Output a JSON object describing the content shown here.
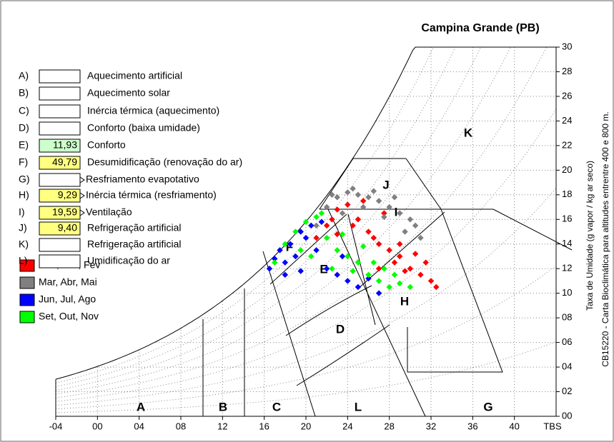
{
  "chart_data": {
    "type": "scatter",
    "title": "Campina Grande (PB)",
    "y_label": "Taxa de Umidade (g vapor / kg ar seco)",
    "note": "CB15220 - Carta Bioclimática para altitudes entrentre 400 e 800 m.",
    "x_label": "TBS",
    "xlim": [
      -4,
      44
    ],
    "ylim": [
      0,
      30
    ],
    "xticks": [
      {
        "value": -4,
        "label": "-04"
      },
      {
        "value": 0,
        "label": "00"
      },
      {
        "value": 4,
        "label": "04"
      },
      {
        "value": 8,
        "label": "08"
      },
      12,
      16,
      20,
      24,
      28,
      32,
      36,
      40
    ],
    "yticks": [
      {
        "value": 0,
        "label": "00"
      },
      {
        "value": 2,
        "label": "02"
      },
      {
        "value": 4,
        "label": "04"
      },
      {
        "value": 6,
        "label": "06"
      },
      {
        "value": 8,
        "label": "08"
      },
      10,
      12,
      14,
      16,
      18,
      20,
      22,
      24,
      26,
      28,
      30
    ],
    "zones": [
      "A",
      "B",
      "C",
      "L",
      "G",
      "D",
      "E",
      "F",
      "H",
      "I",
      "J",
      "K"
    ],
    "series": [
      {
        "name": "Dez, Jan, Fev",
        "color": "#ff0000",
        "x": [
          22,
          23,
          24,
          25,
          26,
          27,
          28,
          29,
          30,
          31,
          32,
          24.5,
          26.5,
          28.5,
          30.5,
          32.5,
          23,
          25.5,
          27.5,
          29.5,
          31.5,
          21,
          22.5,
          27,
          29
        ],
        "values": [
          15.5,
          16.8,
          17.2,
          16,
          15,
          14,
          13.5,
          13,
          12,
          11.5,
          11,
          15.5,
          14.5,
          12.5,
          13.2,
          10.5,
          14.8,
          17.5,
          16.5,
          11.8,
          12.5,
          14.5,
          16,
          12,
          14
        ]
      },
      {
        "name": "Mar, Abr, Mai",
        "color": "#808080",
        "x": [
          21,
          22,
          23,
          24,
          25,
          26,
          27,
          28,
          29,
          30,
          22.5,
          24.5,
          26.5,
          28.5,
          30.5,
          23.5,
          25.5,
          27.5,
          29.5,
          31
        ],
        "values": [
          15.5,
          17,
          17.8,
          18.2,
          18,
          17.8,
          17.5,
          17,
          16.5,
          16,
          18,
          18.5,
          18.3,
          17.8,
          15.5,
          16.5,
          17,
          16.2,
          15,
          14.5
        ]
      },
      {
        "name": "Jun, Jul, Ago",
        "color": "#0000ff",
        "x": [
          16.5,
          17,
          17.5,
          18,
          18.5,
          19,
          19.5,
          20,
          20.5,
          21,
          22,
          23,
          24,
          25,
          26,
          27,
          18,
          19.5,
          21.5,
          23.5
        ],
        "values": [
          12,
          12.8,
          13.5,
          12.5,
          14,
          13,
          15,
          14.5,
          15.5,
          13.5,
          12,
          11.5,
          11,
          10.5,
          11.2,
          10,
          11.5,
          11.8,
          15.8,
          13
        ]
      },
      {
        "name": "Set, Out, Nov",
        "color": "#00ff00",
        "x": [
          17,
          18,
          19,
          20,
          21,
          22,
          23,
          24,
          25,
          26,
          27,
          28,
          29,
          30,
          20.5,
          22.5,
          24.5,
          26.5,
          28.5,
          19.5,
          21.5,
          23.5,
          25.5,
          27.5
        ],
        "values": [
          12.5,
          14,
          15,
          15.8,
          16.2,
          14.5,
          13.5,
          13,
          12.5,
          11.5,
          11,
          10.5,
          10.8,
          10.5,
          13,
          12,
          11.8,
          12.5,
          11.5,
          13.5,
          16.5,
          14.8,
          13.8,
          12
        ]
      }
    ]
  },
  "strategies": [
    {
      "code": "A)",
      "name": "Aquecimento artificial"
    },
    {
      "code": "B)",
      "name": "Aquecimento solar"
    },
    {
      "code": "C)",
      "name": "Inércia térmica (aquecimento)"
    },
    {
      "code": "D)",
      "name": "Conforto (baixa umidade)"
    },
    {
      "code": "E)",
      "name": "Conforto",
      "value": 11.93,
      "value_label": "11,93"
    },
    {
      "code": "F)",
      "name": "Desumidificação (renovação do ar)",
      "value": 49.79,
      "value_label": "49,79"
    },
    {
      "code": "G)",
      "name": "Resfriamento evapotativo"
    },
    {
      "code": "H)",
      "name": "Inércia térmica (resfriamento)",
      "value": 9.29,
      "value_label": "9,29"
    },
    {
      "code": "I)",
      "name": "Ventilação",
      "value": 19.59,
      "value_label": "19,59"
    },
    {
      "code": "J)",
      "name": "Refrigeração artificial",
      "value": 9.4,
      "value_label": "9,40"
    },
    {
      "code": "K)",
      "name": "Refrigeração artificial"
    },
    {
      "code": "L)",
      "name": "Umidificação do ar"
    }
  ]
}
